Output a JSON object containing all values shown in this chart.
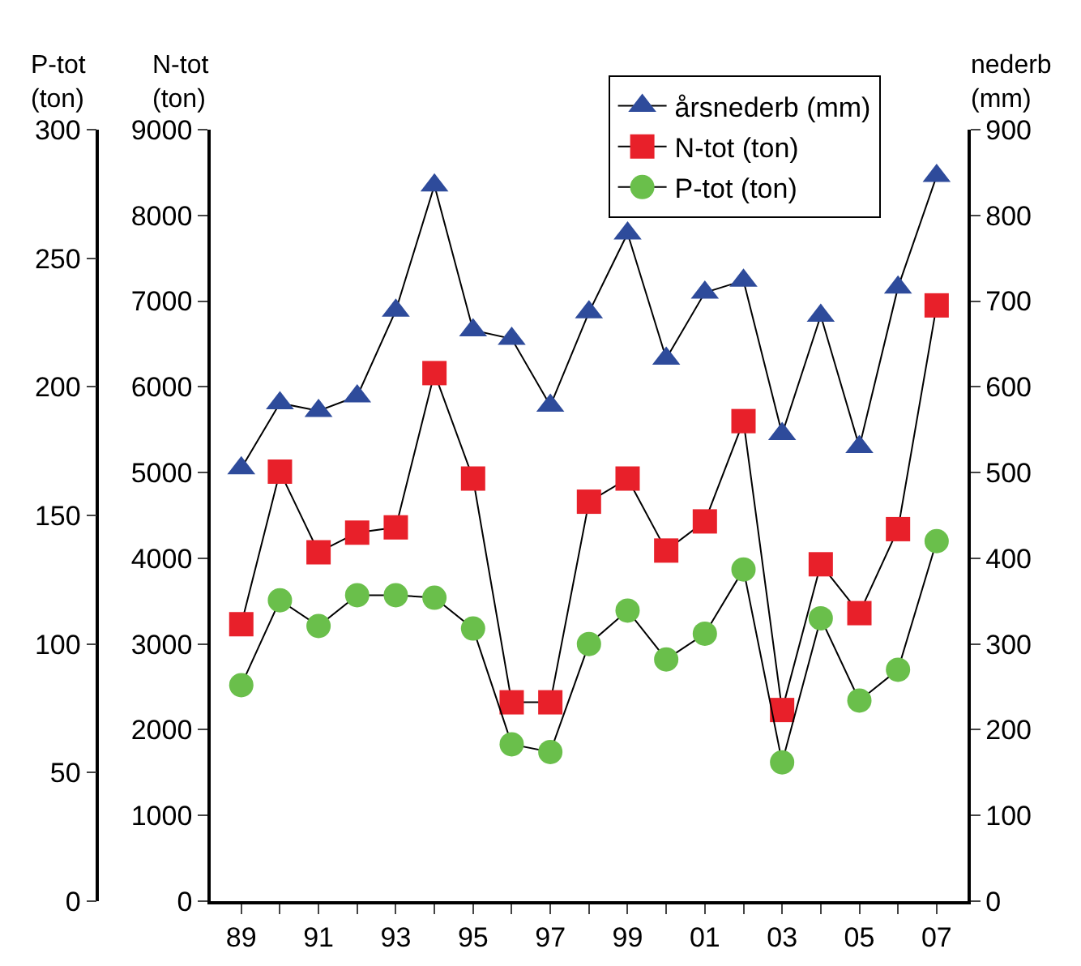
{
  "chart_data": {
    "type": "line",
    "categories": [
      "89",
      null,
      "91",
      null,
      "93",
      null,
      "95",
      null,
      "97",
      null,
      "99",
      null,
      "01",
      null,
      "03",
      null,
      "05",
      null,
      "07"
    ],
    "series": [
      {
        "name": "årsnederb (mm)",
        "color": "#2e4b9b",
        "marker": "triangle",
        "axis": "y2",
        "values": [
          505,
          581,
          572,
          589,
          689,
          835,
          666,
          656,
          578,
          687,
          779,
          633,
          710,
          724,
          545,
          683,
          530,
          716,
          846
        ]
      },
      {
        "name": "N-tot (ton)",
        "color": "#e8202a",
        "marker": "square",
        "values": [
          3230,
          5010,
          4070,
          4300,
          4360,
          6160,
          4930,
          2320,
          2320,
          4660,
          4930,
          4090,
          4430,
          5600,
          2230,
          3930,
          3360,
          4340,
          6950
        ]
      },
      {
        "name": "P-tot (ton)",
        "color": "#6abf4b",
        "marker": "circle",
        "axis": "y3",
        "values": [
          84,
          117,
          107,
          119,
          119,
          118,
          106,
          61,
          58,
          100,
          113,
          94,
          104,
          129,
          54,
          110,
          78,
          90,
          140
        ]
      }
    ],
    "ylabel": "N-tot\n(ton)",
    "y2label": "nederb\n(mm)",
    "y3label": "P-tot\n(ton)",
    "ylim": [
      0,
      9000
    ],
    "yticks": [
      0,
      1000,
      2000,
      3000,
      4000,
      5000,
      6000,
      7000,
      8000,
      9000
    ],
    "y2lim": [
      0,
      900
    ],
    "y2ticks": [
      0,
      100,
      200,
      300,
      400,
      500,
      600,
      700,
      800,
      900
    ],
    "y3lim": [
      0,
      300
    ],
    "y3ticks": [
      0,
      50,
      100,
      150,
      200,
      250,
      300
    ],
    "grid": false,
    "legend": "top right",
    "line_style": "solid"
  }
}
